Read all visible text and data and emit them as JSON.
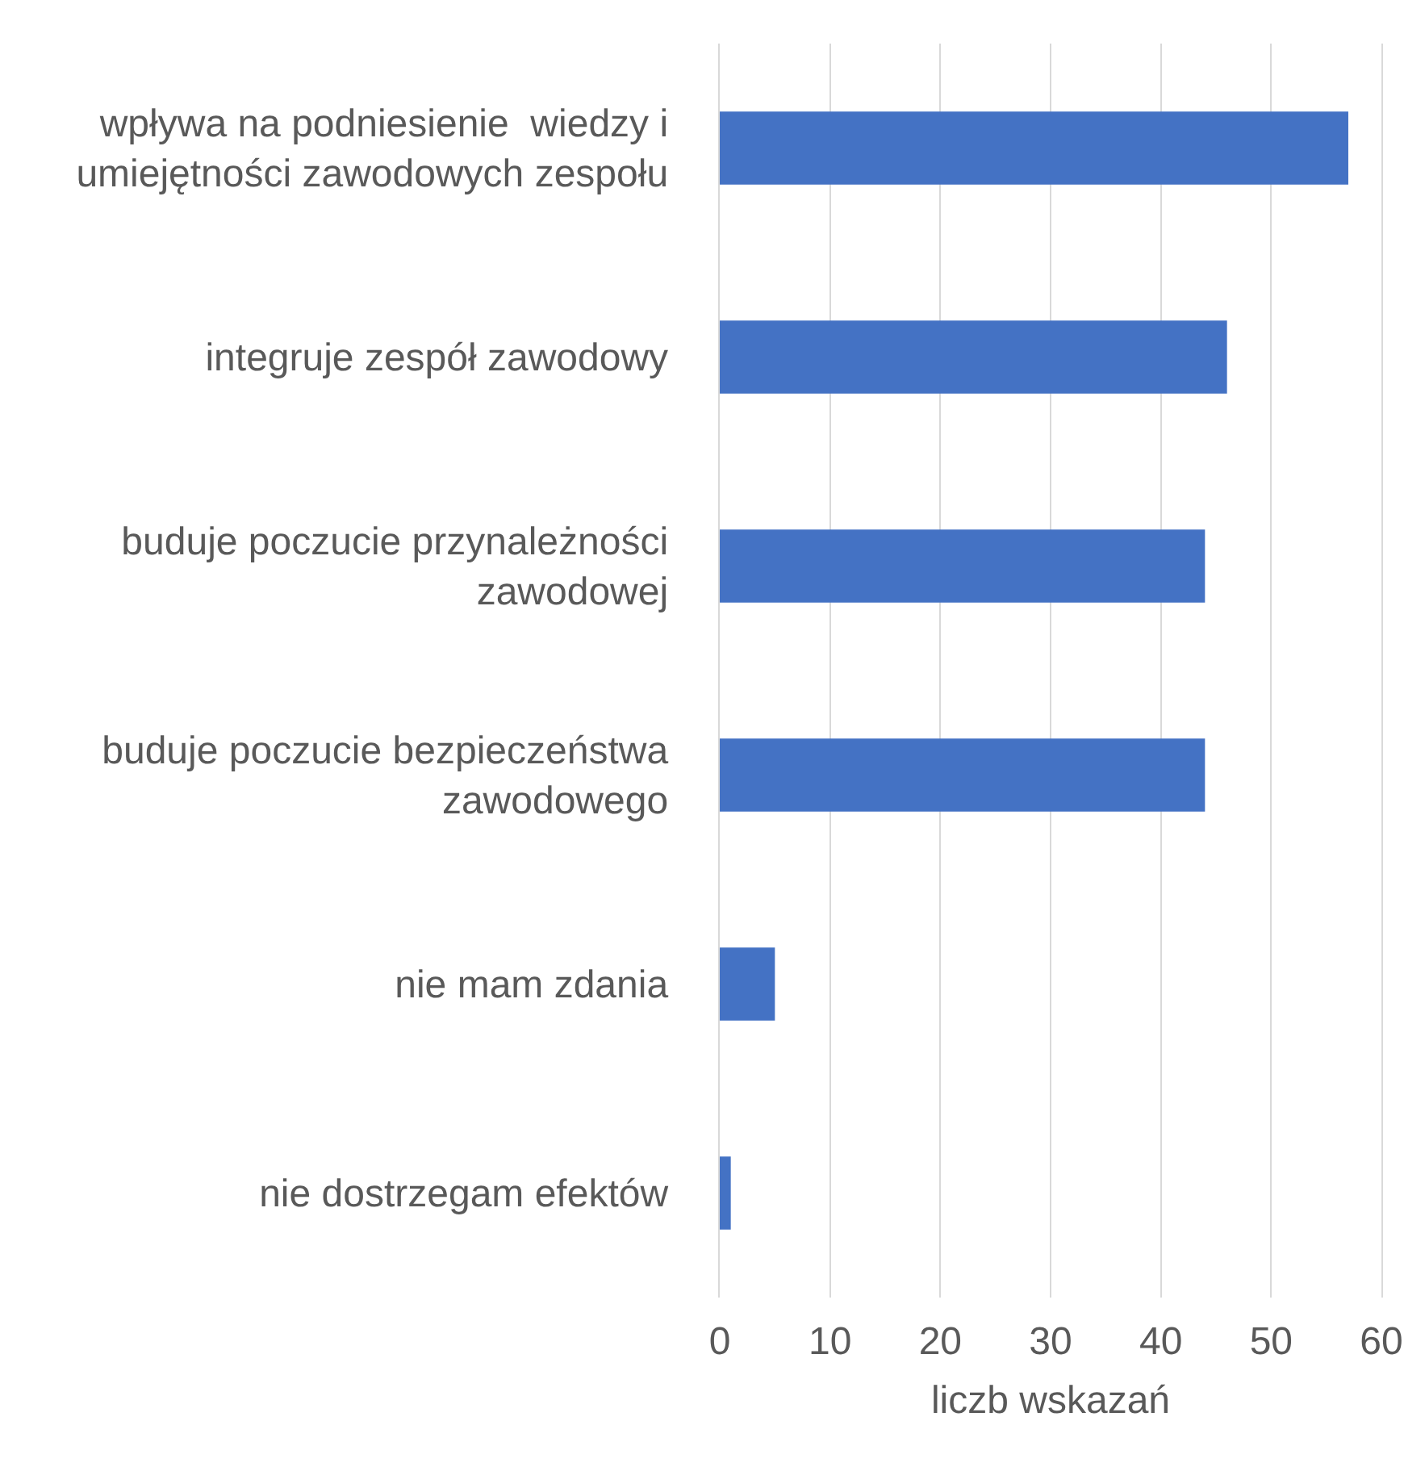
{
  "chart_data": {
    "type": "bar",
    "orientation": "horizontal",
    "categories": [
      "wpływa na podniesienie  wiedzy i\numiejętności zawodowych zespołu",
      "integruje zespół zawodowy",
      "buduje poczucie przynależności\nzawodowej",
      "buduje poczucie bezpieczeństwa\nzawodowego",
      "nie mam zdania",
      "nie dostrzegam efektów"
    ],
    "values": [
      57,
      46,
      44,
      44,
      5,
      1
    ],
    "color": "#4472c4",
    "xlabel": "liczb wskazań",
    "xlim": [
      0,
      60
    ],
    "xticks": [
      0,
      10,
      20,
      30,
      40,
      50,
      60
    ],
    "grid": "x"
  }
}
